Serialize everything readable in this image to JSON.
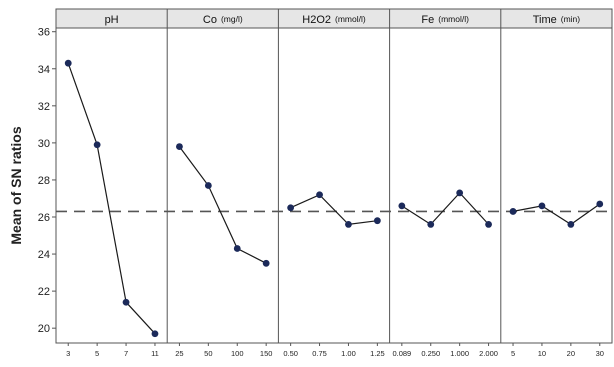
{
  "chart_data": {
    "type": "line",
    "ylabel": "Mean of SN ratios",
    "ylim": [
      19.2,
      36.2
    ],
    "yticks": [
      20,
      22,
      24,
      26,
      28,
      30,
      32,
      34,
      36
    ],
    "reference_line": 26.3,
    "grid": false,
    "colors": {
      "line": "#1a1a1a",
      "marker": "#1c2a5a",
      "reference": "#555555",
      "header": "#e6e6e6"
    },
    "panels": [
      {
        "title": "pH",
        "unit": "",
        "categories": [
          "3",
          "5",
          "7",
          "11"
        ],
        "values": [
          34.3,
          29.9,
          21.4,
          19.7
        ]
      },
      {
        "title": "Co",
        "unit": "(mg/l)",
        "categories": [
          "25",
          "50",
          "100",
          "150"
        ],
        "values": [
          29.8,
          27.7,
          24.3,
          23.5
        ]
      },
      {
        "title": "H2O2",
        "unit": "(mmol/l)",
        "categories": [
          "0.50",
          "0.75",
          "1.00",
          "1.25"
        ],
        "values": [
          26.5,
          27.2,
          25.6,
          25.8
        ]
      },
      {
        "title": "Fe",
        "unit": "(mmol/l)",
        "categories": [
          "0.089",
          "0.250",
          "1.000",
          "2.000"
        ],
        "values": [
          26.6,
          25.6,
          27.3,
          25.6
        ]
      },
      {
        "title": "Time",
        "unit": "(min)",
        "categories": [
          "5",
          "10",
          "20",
          "30"
        ],
        "values": [
          26.3,
          26.6,
          25.6,
          26.7
        ]
      }
    ]
  }
}
